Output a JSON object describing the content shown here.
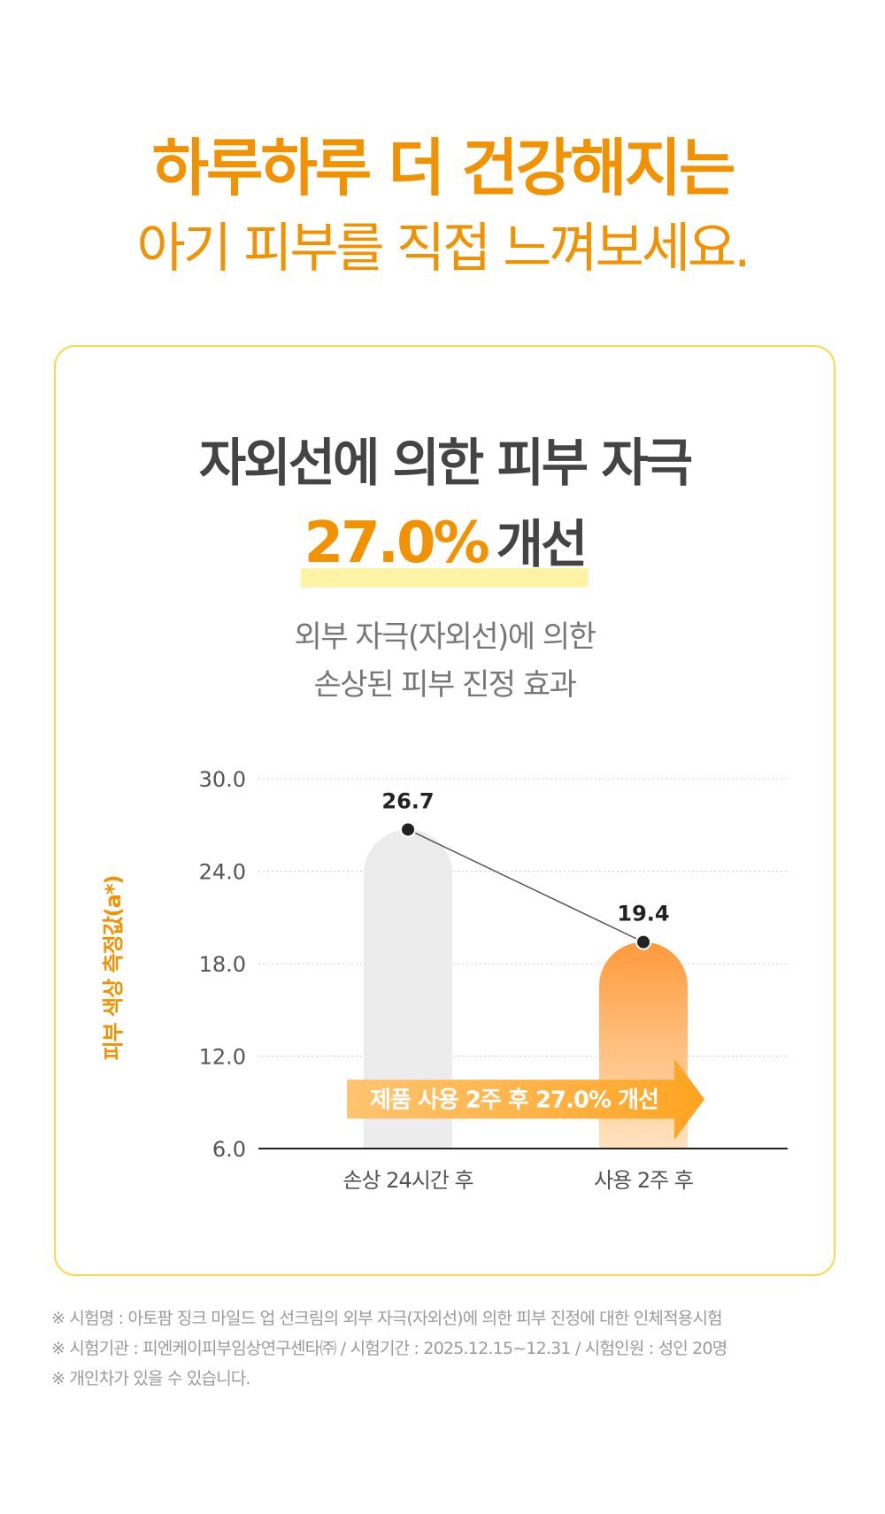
{
  "headline": {
    "line1": "하루하루 더 건강해지는",
    "line2": "아기 피부를 직접 느껴보세요."
  },
  "card": {
    "title": "자외선에 의한 피부 자극",
    "stat_value": "27.0%",
    "stat_text": "개선",
    "subtitle_line1": "외부 자극(자외선)에 의한",
    "subtitle_line2": "손상된 피부 진정 효과"
  },
  "chart_data": {
    "type": "bar",
    "ylabel": "피부 색상 측정값(a*)",
    "ylim": [
      6,
      30
    ],
    "yticks": [
      "30.0",
      "24.0",
      "18.0",
      "12.0",
      "6.0"
    ],
    "categories": [
      "손상 24시간 후",
      "사용 2주 후"
    ],
    "values": [
      26.7,
      19.4
    ],
    "value_labels": [
      "26.7",
      "19.4"
    ],
    "annotation": "제품 사용 2주 후 27.0% 개선",
    "colors": {
      "bar_before": "#ececec",
      "bar_after_top": "#ff9a3c",
      "bar_after_bottom": "#ffe3bf",
      "arrow": "#ffb030",
      "ylabel": "#f39200"
    }
  },
  "footnotes": [
    "※ 시험명 : 아토팜 징크 마일드 업 선크림의 외부 자극(자외선)에 의한 피부 진정에 대한 인체적용시험",
    "※ 시험기관 : 피엔케이피부임상연구센타㈜ / 시험기간 : 2025.12.15~12.31 / 시험인원 : 성인 20명",
    "※ 개인차가 있을 수 있습니다."
  ]
}
